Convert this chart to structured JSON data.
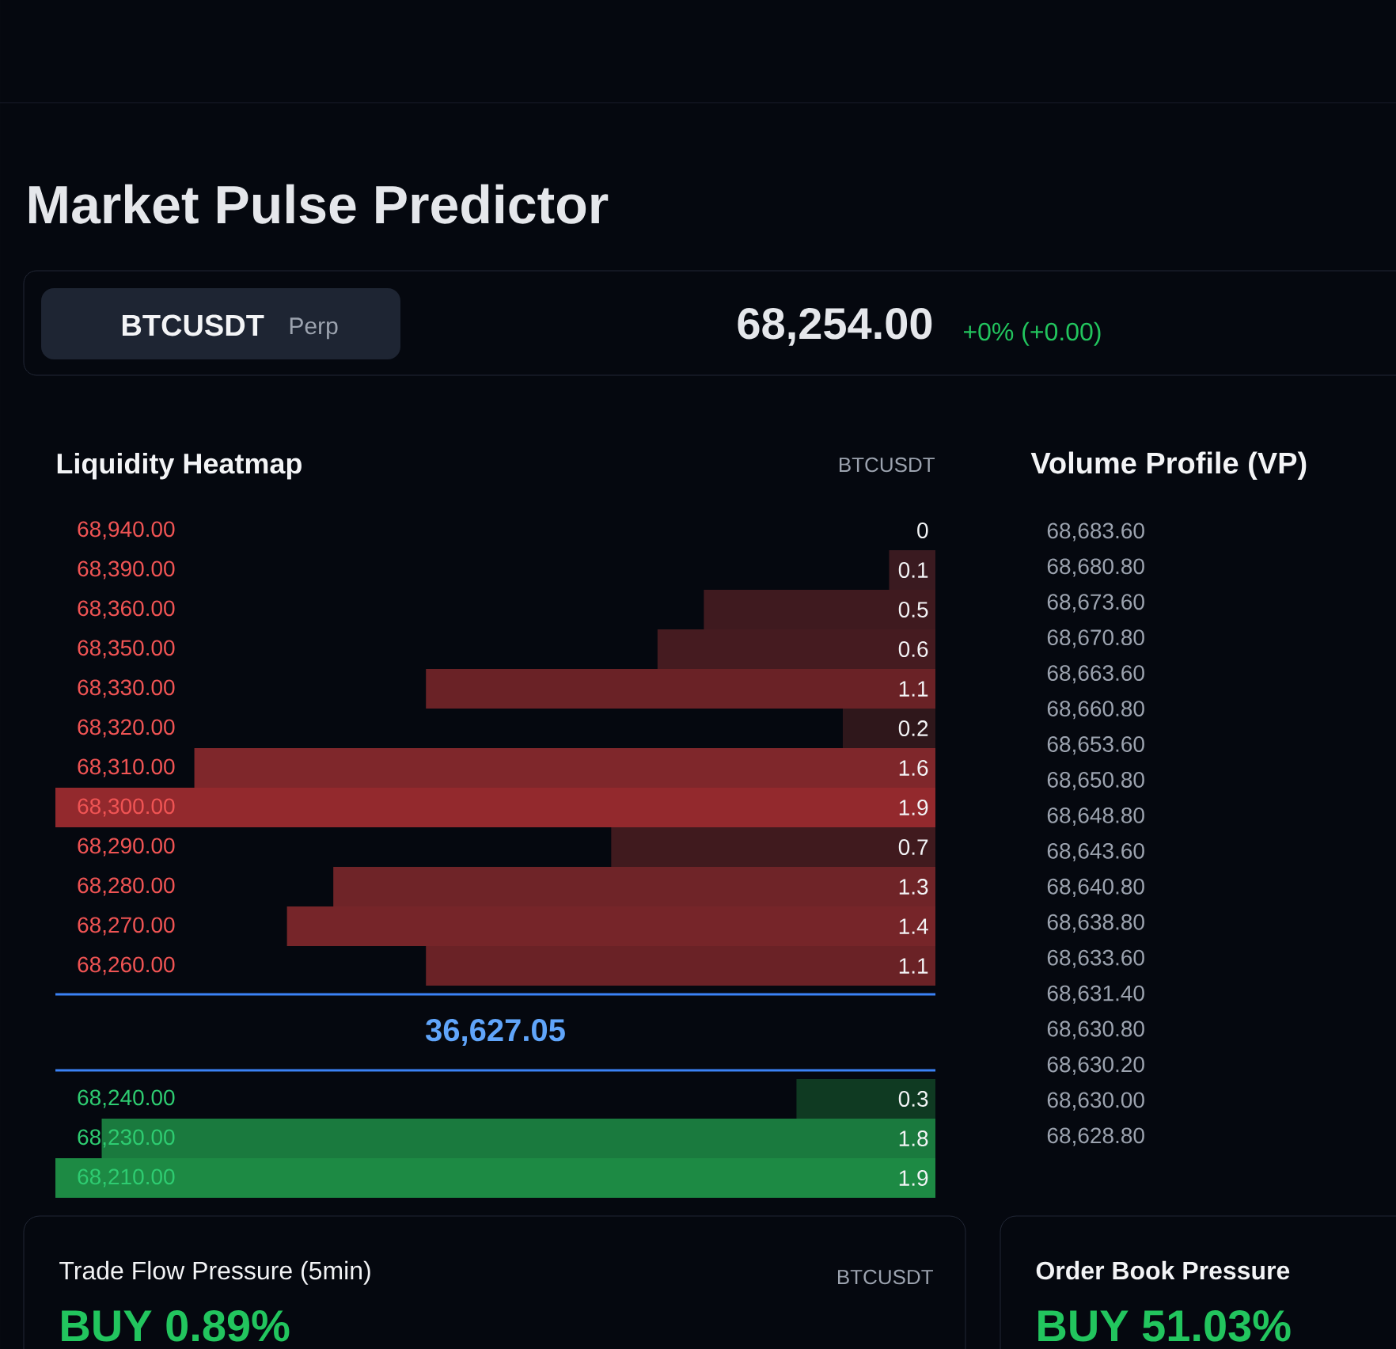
{
  "chart_data": [
    {
      "type": "other",
      "title": "Market Pulse Predictor",
      "annotations": [
        "BTCUSDT",
        "Perp",
        "68,254.00",
        "+0% (+0.00)"
      ]
    },
    {
      "type": "bar",
      "orientation": "horizontal",
      "title": "Liquidity Heatmap",
      "subtitle": "BTCUSDT",
      "annotations": [
        "36,627.05"
      ],
      "categories": [
        "68,940.00",
        "68,390.00",
        "68,360.00",
        "68,350.00",
        "68,330.00",
        "68,320.00",
        "68,310.00",
        "68,300.00",
        "68,290.00",
        "68,280.00",
        "68,270.00",
        "68,260.00"
      ],
      "values": [
        0,
        0.1,
        0.5,
        0.6,
        1.1,
        0.2,
        1.6,
        1.9,
        0.7,
        1.3,
        1.4,
        1.1
      ],
      "colors": [
        "#3a1a20",
        "#3a1a20",
        "#3f1a1f",
        "#451b20",
        "#6a2226",
        "#2f171b",
        "#7f272b",
        "#93292d",
        "#401a1e",
        "#6f2428",
        "#762529",
        "#6a2226"
      ],
      "xlim": [
        1.9,
        0
      ],
      "data_labels": true
    },
    {
      "type": "bar",
      "orientation": "horizontal",
      "categories": [
        "68,240.00",
        "68,230.00",
        "68,210.00"
      ],
      "values": [
        0.3,
        1.8,
        1.9
      ],
      "colors": [
        "#0f3a22",
        "#1a7a3e",
        "#1d8a44"
      ],
      "xlim": [
        1.9,
        0
      ],
      "data_labels": true
    },
    {
      "type": "other",
      "title": "Volume Profile (VP)",
      "annotations": [
        "68,683.60",
        "68,680.80",
        "68,673.60",
        "68,670.80",
        "68,663.60",
        "68,660.80",
        "68,653.60",
        "68,650.80",
        "68,648.80",
        "68,643.60",
        "68,640.80",
        "68,638.80",
        "68,633.60",
        "68,631.40",
        "68,630.80",
        "68,630.20",
        "68,630.00",
        "68,628.80"
      ]
    },
    {
      "type": "other",
      "title": "Trade Flow Pressure (5min)",
      "subtitle": "BTCUSDT",
      "annotations": [
        "BUY 0.89%"
      ]
    },
    {
      "type": "other",
      "title": "Order Book Pressure",
      "annotations": [
        "BUY 51.03%"
      ]
    }
  ]
}
